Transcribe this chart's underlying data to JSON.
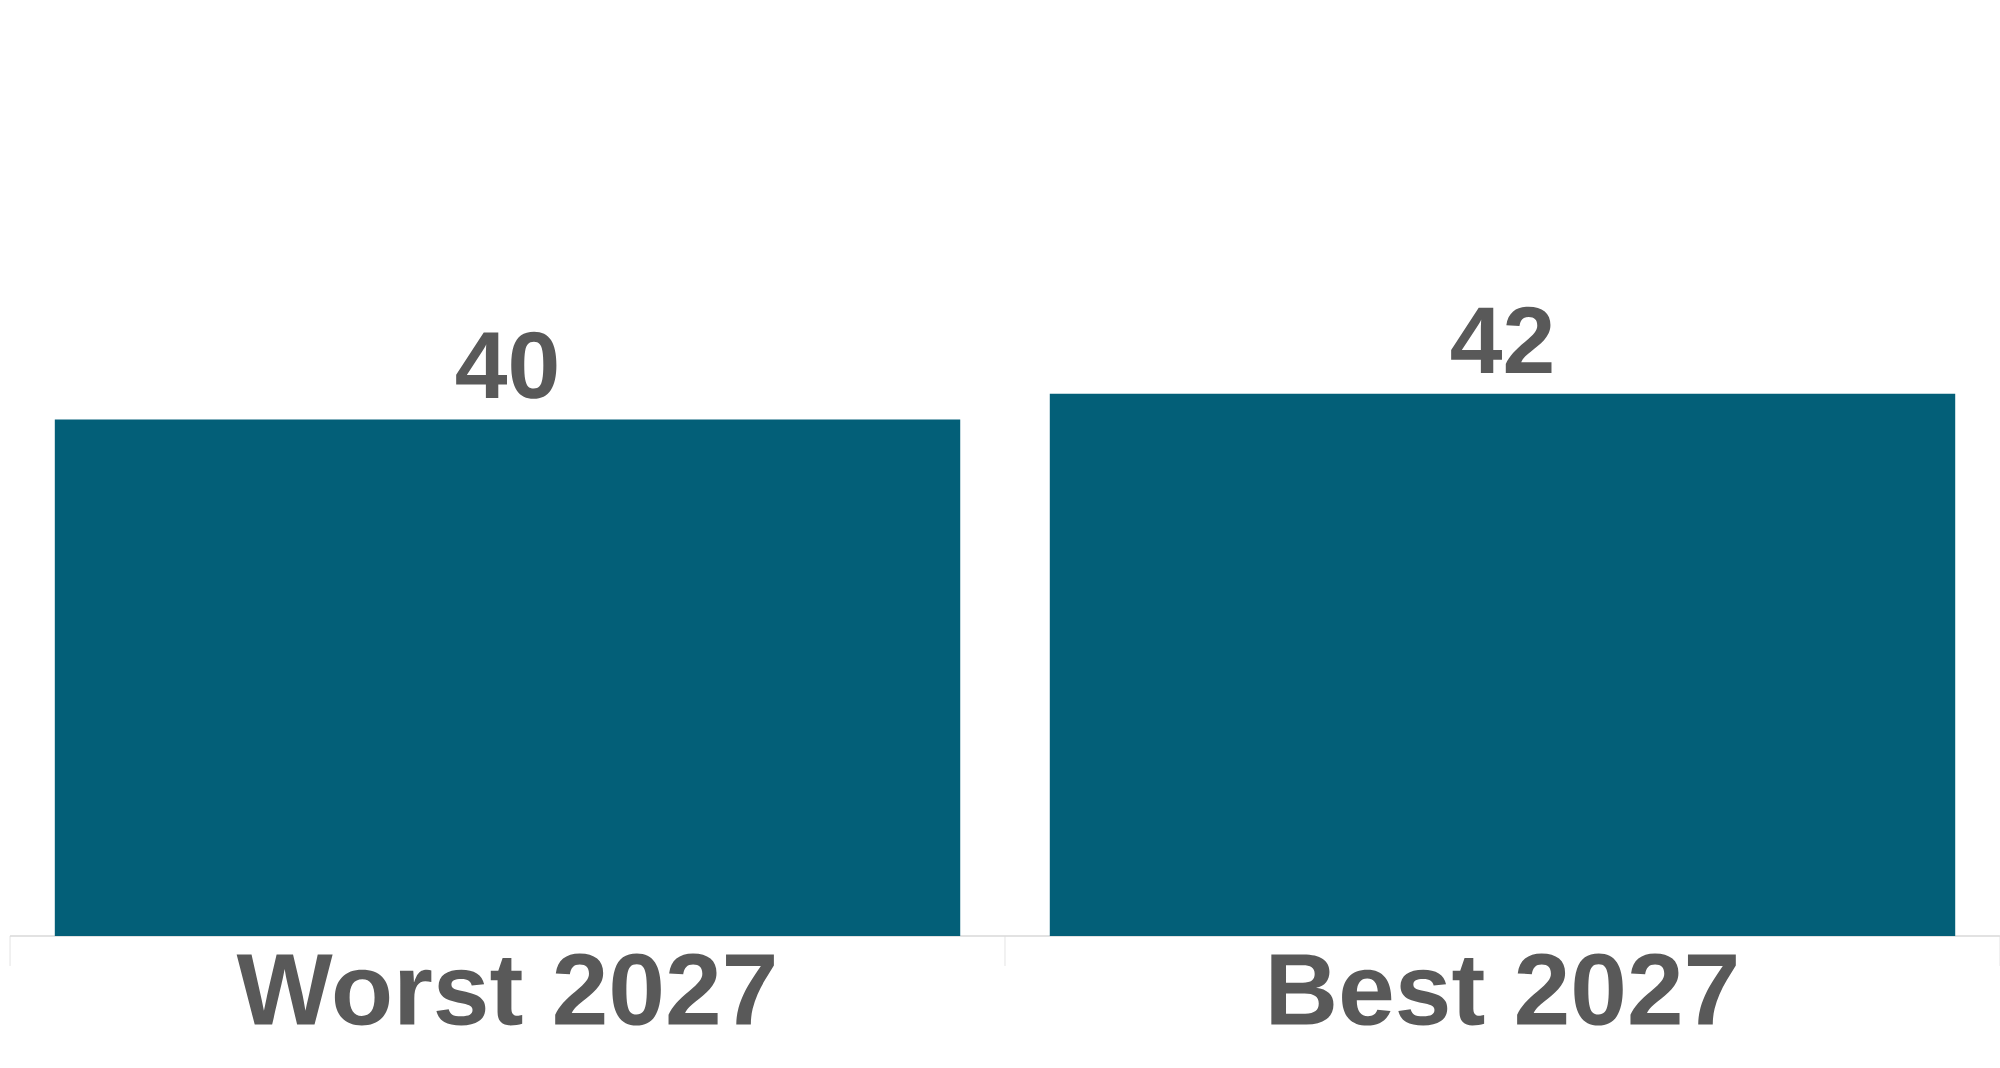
{
  "chart_data": {
    "type": "bar",
    "categories": [
      "Worst 2027",
      "Best 2027"
    ],
    "values": [
      40,
      42
    ],
    "color": "#035f78",
    "data_labels": true
  }
}
